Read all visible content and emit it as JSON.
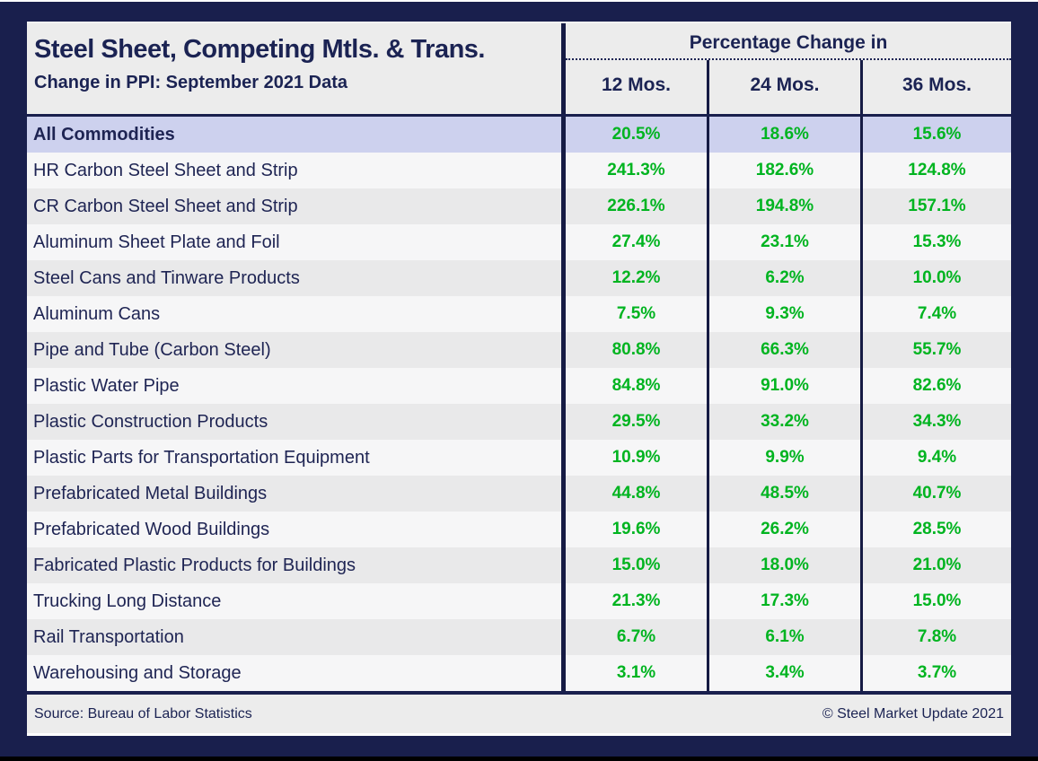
{
  "colors": {
    "background_navy": "#191f4d",
    "text_navy": "#1b2353",
    "value_green": "#00b420",
    "highlight_lavender": "#cdd1ee",
    "panel_gray": "#ececec"
  },
  "chart_data": {
    "type": "table",
    "title": "Steel Sheet, Competing Mtls. & Trans.",
    "subtitle": "Change in PPI: September 2021 Data",
    "column_group_label": "Percentage Change in",
    "columns": [
      "12 Mos.",
      "24 Mos.",
      "36 Mos."
    ],
    "rows": [
      {
        "label": "All Commodities",
        "m12": "20.5%",
        "m24": "18.6%",
        "m36": "15.6%",
        "highlight": true
      },
      {
        "label": "HR Carbon Steel Sheet and Strip",
        "m12": "241.3%",
        "m24": "182.6%",
        "m36": "124.8%"
      },
      {
        "label": "CR Carbon Steel Sheet and Strip",
        "m12": "226.1%",
        "m24": "194.8%",
        "m36": "157.1%"
      },
      {
        "label": "Aluminum Sheet Plate and Foil",
        "m12": "27.4%",
        "m24": "23.1%",
        "m36": "15.3%"
      },
      {
        "label": "Steel Cans and Tinware Products",
        "m12": "12.2%",
        "m24": "6.2%",
        "m36": "10.0%"
      },
      {
        "label": "Aluminum Cans",
        "m12": "7.5%",
        "m24": "9.3%",
        "m36": "7.4%"
      },
      {
        "label": "Pipe and Tube (Carbon Steel)",
        "m12": "80.8%",
        "m24": "66.3%",
        "m36": "55.7%"
      },
      {
        "label": "Plastic Water Pipe",
        "m12": "84.8%",
        "m24": "91.0%",
        "m36": "82.6%"
      },
      {
        "label": "Plastic Construction Products",
        "m12": "29.5%",
        "m24": "33.2%",
        "m36": "34.3%"
      },
      {
        "label": "Plastic Parts for Transportation Equipment",
        "m12": "10.9%",
        "m24": "9.9%",
        "m36": "9.4%"
      },
      {
        "label": "Prefabricated Metal Buildings",
        "m12": "44.8%",
        "m24": "48.5%",
        "m36": "40.7%"
      },
      {
        "label": "Prefabricated Wood Buildings",
        "m12": "19.6%",
        "m24": "26.2%",
        "m36": "28.5%"
      },
      {
        "label": "Fabricated Plastic Products for Buildings",
        "m12": "15.0%",
        "m24": "18.0%",
        "m36": "21.0%"
      },
      {
        "label": "Trucking Long Distance",
        "m12": "21.3%",
        "m24": "17.3%",
        "m36": "15.0%"
      },
      {
        "label": "Rail Transportation",
        "m12": "6.7%",
        "m24": "6.1%",
        "m36": "7.8%"
      },
      {
        "label": "Warehousing and Storage",
        "m12": "3.1%",
        "m24": "3.4%",
        "m36": "3.7%"
      }
    ]
  },
  "footer": {
    "source": "Source: Bureau of Labor Statistics",
    "copyright": "© Steel Market Update 2021"
  }
}
